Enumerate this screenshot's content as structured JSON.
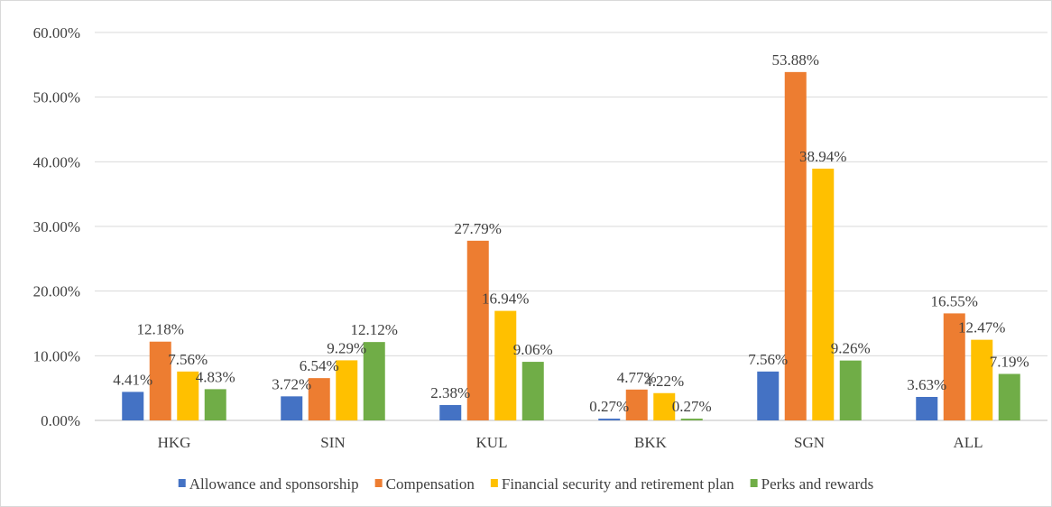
{
  "chart_data": {
    "type": "bar",
    "title": "",
    "xlabel": "",
    "ylabel": "",
    "categories": [
      "HKG",
      "SIN",
      "KUL",
      "BKK",
      "SGN",
      "ALL"
    ],
    "series": [
      {
        "name": "Allowance and sponsorship",
        "color": "#4472c4",
        "values": [
          4.41,
          3.72,
          2.38,
          0.27,
          7.56,
          3.63
        ],
        "labels": [
          "4.41%",
          "3.72%",
          "2.38%",
          "0.27%",
          "7.56%",
          "3.63%"
        ]
      },
      {
        "name": "Compensation",
        "color": "#ed7d31",
        "values": [
          12.18,
          6.54,
          27.79,
          4.77,
          53.88,
          16.55
        ],
        "labels": [
          "12.18%",
          "6.54%",
          "27.79%",
          "4.77%",
          "53.88%",
          "16.55%"
        ]
      },
      {
        "name": "Financial security and retirement plan",
        "color": "#ffc000",
        "values": [
          7.56,
          9.29,
          16.94,
          4.22,
          38.94,
          12.47
        ],
        "labels": [
          "7.56%",
          "9.29%",
          "16.94%",
          "4.22%",
          "38.94%",
          "12.47%"
        ]
      },
      {
        "name": "Perks and rewards",
        "color": "#70ad47",
        "values": [
          4.83,
          12.12,
          9.06,
          0.27,
          9.26,
          7.19
        ],
        "labels": [
          "4.83%",
          "12.12%",
          "9.06%",
          "0.27%",
          "9.26%",
          "7.19%"
        ]
      }
    ],
    "ylim": [
      0,
      60
    ],
    "yticks": [
      0,
      10,
      20,
      30,
      40,
      50,
      60
    ],
    "ytick_labels": [
      "0.00%",
      "10.00%",
      "20.00%",
      "30.00%",
      "40.00%",
      "50.00%",
      "60.00%"
    ],
    "grid": true,
    "legend_position": "bottom"
  }
}
